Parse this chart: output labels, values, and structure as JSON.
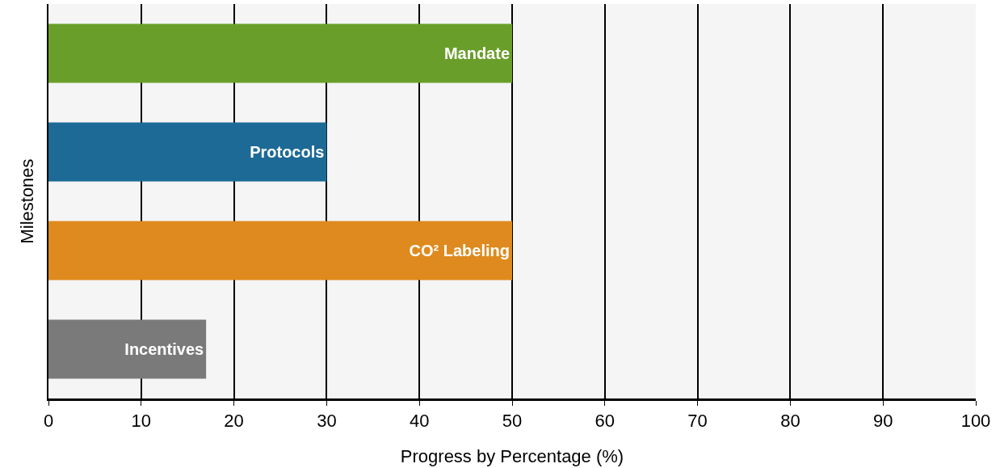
{
  "chart_data": {
    "type": "bar",
    "orientation": "horizontal",
    "xlabel": "Progress by Percentage (%)",
    "ylabel": "Milestones",
    "categories": [
      "Mandate",
      "Protocols",
      "CO² Labeling",
      "Incentives"
    ],
    "values": [
      50,
      30,
      50,
      17
    ],
    "colors": [
      "#6a9e2a",
      "#1d6a96",
      "#de8a1e",
      "#7a7a7a"
    ],
    "xlim": [
      0,
      100
    ],
    "xticks": [
      0,
      10,
      20,
      30,
      40,
      50,
      60,
      70,
      80,
      90,
      100
    ],
    "grid": "x",
    "tick_labels": "x"
  }
}
